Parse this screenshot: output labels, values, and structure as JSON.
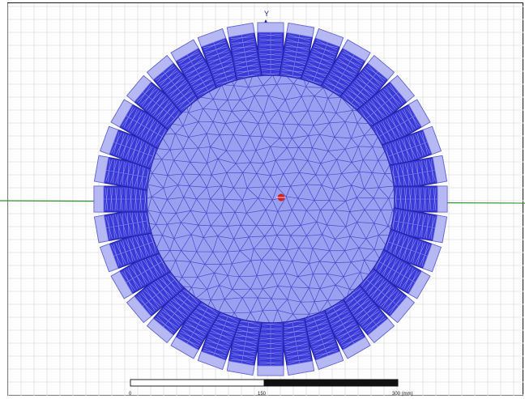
{
  "axis": {
    "y_label": "Y"
  },
  "model": {
    "slot_count": 36,
    "colors": {
      "rotor_fill": "#9aa0ef",
      "mesh_line": "#3434c8",
      "slot_fill": "#3a3ad8",
      "slot_tip": "#b5b8f2",
      "origin_marker": "#d02020",
      "x_axis": "#2f8f2f",
      "y_axis": "#1a1a8a",
      "grid": "#e6e6e6"
    }
  },
  "scale_bar": {
    "labels": [
      "0",
      "150",
      "300 (mm)"
    ]
  }
}
